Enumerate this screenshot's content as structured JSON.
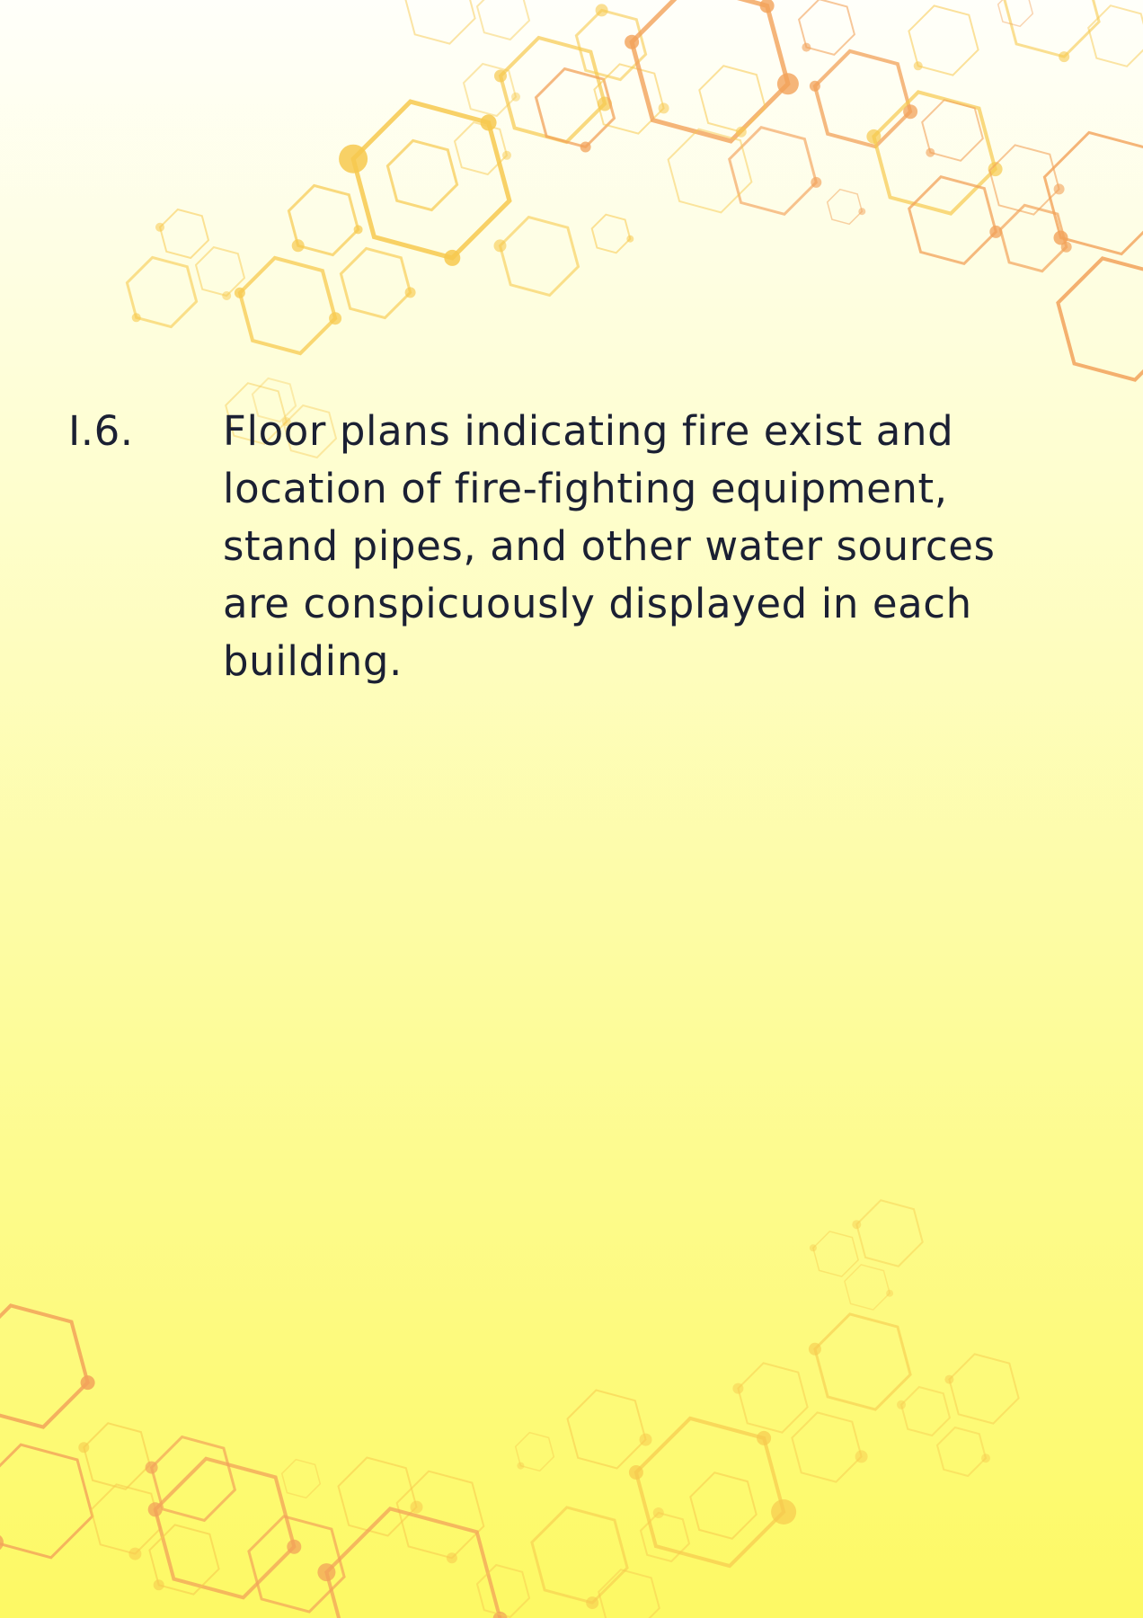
{
  "item": {
    "number": "I.6.",
    "text": "Floor plans indicating fire exist and location of fire-fighting equipment, stand pipes, and other water sources are conspicuously displayed in each building."
  },
  "colors": {
    "text": "#1b2033",
    "hex_yellow": "#f7c94f",
    "hex_orange": "#f2a25a"
  }
}
